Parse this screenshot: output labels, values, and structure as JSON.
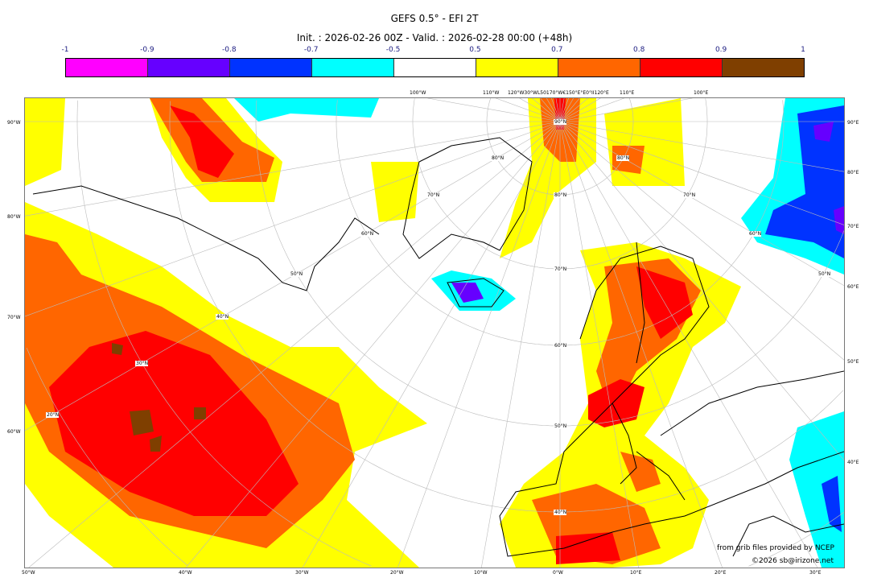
{
  "title": "GEFS 0.5° - EFI 2T",
  "subtitle": "Init. : 2026-02-26 00Z - Valid. : 2026-02-28 00:00 (+48h)",
  "colorbar": {
    "ticks": [
      "-1",
      "-0.9",
      "-0.8",
      "-0.7",
      "-0.5",
      "0.5",
      "0.7",
      "0.8",
      "0.9",
      "1"
    ],
    "colors": [
      "#ff00ff",
      "#6600ff",
      "#0033ff",
      "#00ffff",
      "#ffffff",
      "#ffff00",
      "#ff6600",
      "#ff0000",
      "#7f3f00"
    ]
  },
  "map": {
    "projection": "polar stereographic",
    "bottom_labels": [
      "50°W",
      "40°W",
      "30°W",
      "20°W",
      "10°W",
      "0°W",
      "10°E",
      "20°E",
      "30°E"
    ],
    "left_labels": [
      "90°W",
      "80°W",
      "70°W",
      "60°W"
    ],
    "right_labels": [
      "90°E",
      "80°E",
      "70°E",
      "60°E",
      "50°E",
      "40°E"
    ],
    "top_labels": [
      "100°W",
      "110°W",
      "120°W30°WL50170°W€150°E°E0°II120°E",
      "110°E",
      "100°E"
    ],
    "lat_labels": [
      "90°N",
      "80°N",
      "70°N",
      "60°N",
      "50°N",
      "40°N",
      "30°N",
      "20°N"
    ]
  },
  "credits": {
    "source": "from grib files provided by NCEP",
    "copyright": "©2026 sb@irizone.net"
  }
}
